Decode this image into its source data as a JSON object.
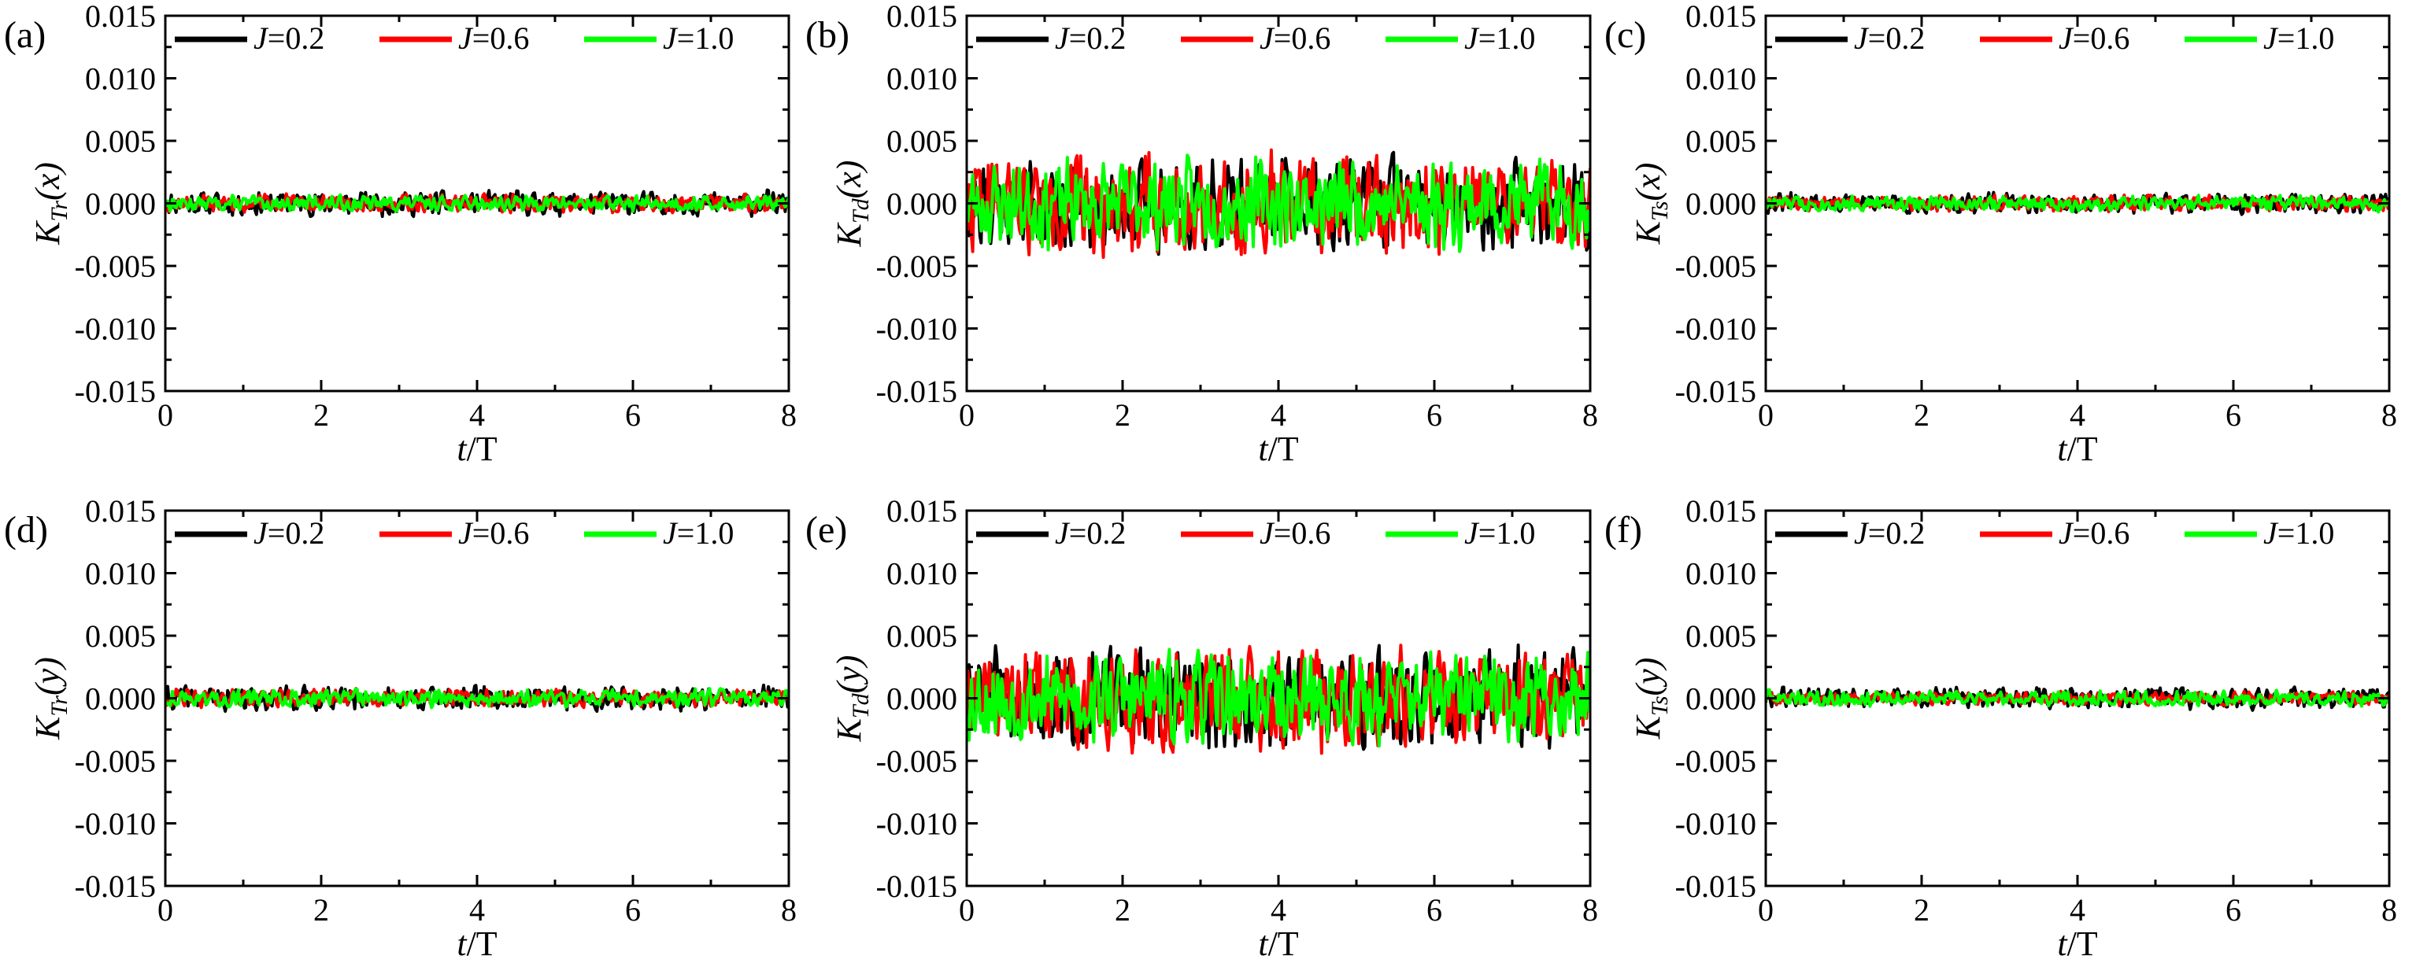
{
  "chart_data": [
    {
      "type": "line",
      "panel_label": "(a)",
      "ylabel_base": "K",
      "ylabel_sub": "Tr",
      "ylabel_arg": "(x)",
      "xlabel_var": "t",
      "xlabel_rest": "/T",
      "xlim": [
        0,
        8
      ],
      "ylim": [
        -0.015,
        0.015
      ],
      "xticks": [
        "0",
        "2",
        "4",
        "6",
        "8"
      ],
      "yticks": [
        "-0.015",
        "-0.010",
        "-0.005",
        "0.000",
        "0.005",
        "0.010",
        "0.015"
      ],
      "series": [
        {
          "name": "J=0.2",
          "color": "#000000",
          "amplitude": 0.0011,
          "seed": 11
        },
        {
          "name": "J=0.6",
          "color": "#ff0000",
          "amplitude": 0.0008,
          "seed": 12
        },
        {
          "name": "J=1.0",
          "color": "#00ff00",
          "amplitude": 0.0007,
          "seed": 13
        }
      ]
    },
    {
      "type": "line",
      "panel_label": "(b)",
      "ylabel_base": "K",
      "ylabel_sub": "Td",
      "ylabel_arg": "(x)",
      "xlabel_var": "t",
      "xlabel_rest": "/T",
      "xlim": [
        0,
        8
      ],
      "ylim": [
        -0.015,
        0.015
      ],
      "xticks": [
        "0",
        "2",
        "4",
        "6",
        "8"
      ],
      "yticks": [
        "-0.015",
        "-0.010",
        "-0.005",
        "0.000",
        "0.005",
        "0.010",
        "0.015"
      ],
      "series": [
        {
          "name": "J=0.2",
          "color": "#000000",
          "amplitude": 0.0042,
          "seed": 21
        },
        {
          "name": "J=0.6",
          "color": "#ff0000",
          "amplitude": 0.0044,
          "seed": 22
        },
        {
          "name": "J=1.0",
          "color": "#00ff00",
          "amplitude": 0.004,
          "seed": 23
        }
      ]
    },
    {
      "type": "line",
      "panel_label": "(c)",
      "ylabel_base": "K",
      "ylabel_sub": "Ts",
      "ylabel_arg": "(x)",
      "xlabel_var": "t",
      "xlabel_rest": "/T",
      "xlim": [
        0,
        8
      ],
      "ylim": [
        -0.015,
        0.015
      ],
      "xticks": [
        "0",
        "2",
        "4",
        "6",
        "8"
      ],
      "yticks": [
        "-0.015",
        "-0.010",
        "-0.005",
        "0.000",
        "0.005",
        "0.010",
        "0.015"
      ],
      "series": [
        {
          "name": "J=0.2",
          "color": "#000000",
          "amplitude": 0.0009,
          "seed": 31
        },
        {
          "name": "J=0.6",
          "color": "#ff0000",
          "amplitude": 0.0007,
          "seed": 32
        },
        {
          "name": "J=1.0",
          "color": "#00ff00",
          "amplitude": 0.0007,
          "seed": 33
        }
      ]
    },
    {
      "type": "line",
      "panel_label": "(d)",
      "ylabel_base": "K",
      "ylabel_sub": "Tr",
      "ylabel_arg": "(y)",
      "xlabel_var": "t",
      "xlabel_rest": "/T",
      "xlim": [
        0,
        8
      ],
      "ylim": [
        -0.015,
        0.015
      ],
      "xticks": [
        "0",
        "2",
        "4",
        "6",
        "8"
      ],
      "yticks": [
        "-0.015",
        "-0.010",
        "-0.005",
        "0.000",
        "0.005",
        "0.010",
        "0.015"
      ],
      "series": [
        {
          "name": "J=0.2",
          "color": "#000000",
          "amplitude": 0.0011,
          "seed": 41
        },
        {
          "name": "J=0.6",
          "color": "#ff0000",
          "amplitude": 0.0008,
          "seed": 42
        },
        {
          "name": "J=1.0",
          "color": "#00ff00",
          "amplitude": 0.0008,
          "seed": 43
        }
      ]
    },
    {
      "type": "line",
      "panel_label": "(e)",
      "ylabel_base": "K",
      "ylabel_sub": "Td",
      "ylabel_arg": "(y)",
      "xlabel_var": "t",
      "xlabel_rest": "/T",
      "xlim": [
        0,
        8
      ],
      "ylim": [
        -0.015,
        0.015
      ],
      "xticks": [
        "0",
        "2",
        "4",
        "6",
        "8"
      ],
      "yticks": [
        "-0.015",
        "-0.010",
        "-0.005",
        "0.000",
        "0.005",
        "0.010",
        "0.015"
      ],
      "series": [
        {
          "name": "J=0.2",
          "color": "#000000",
          "amplitude": 0.0045,
          "seed": 51
        },
        {
          "name": "J=0.6",
          "color": "#ff0000",
          "amplitude": 0.0046,
          "seed": 52
        },
        {
          "name": "J=1.0",
          "color": "#00ff00",
          "amplitude": 0.0042,
          "seed": 53
        }
      ]
    },
    {
      "type": "line",
      "panel_label": "(f)",
      "ylabel_base": "K",
      "ylabel_sub": "Ts",
      "ylabel_arg": "(y)",
      "xlabel_var": "t",
      "xlabel_rest": "/T",
      "xlim": [
        0,
        8
      ],
      "ylim": [
        -0.015,
        0.015
      ],
      "xticks": [
        "0",
        "2",
        "4",
        "6",
        "8"
      ],
      "yticks": [
        "-0.015",
        "-0.010",
        "-0.005",
        "0.000",
        "0.005",
        "0.010",
        "0.015"
      ],
      "series": [
        {
          "name": "J=0.2",
          "color": "#000000",
          "amplitude": 0.001,
          "seed": 61
        },
        {
          "name": "J=0.6",
          "color": "#ff0000",
          "amplitude": 0.0006,
          "seed": 62
        },
        {
          "name": "J=1.0",
          "color": "#00ff00",
          "amplitude": 0.0007,
          "seed": 63
        }
      ]
    }
  ]
}
